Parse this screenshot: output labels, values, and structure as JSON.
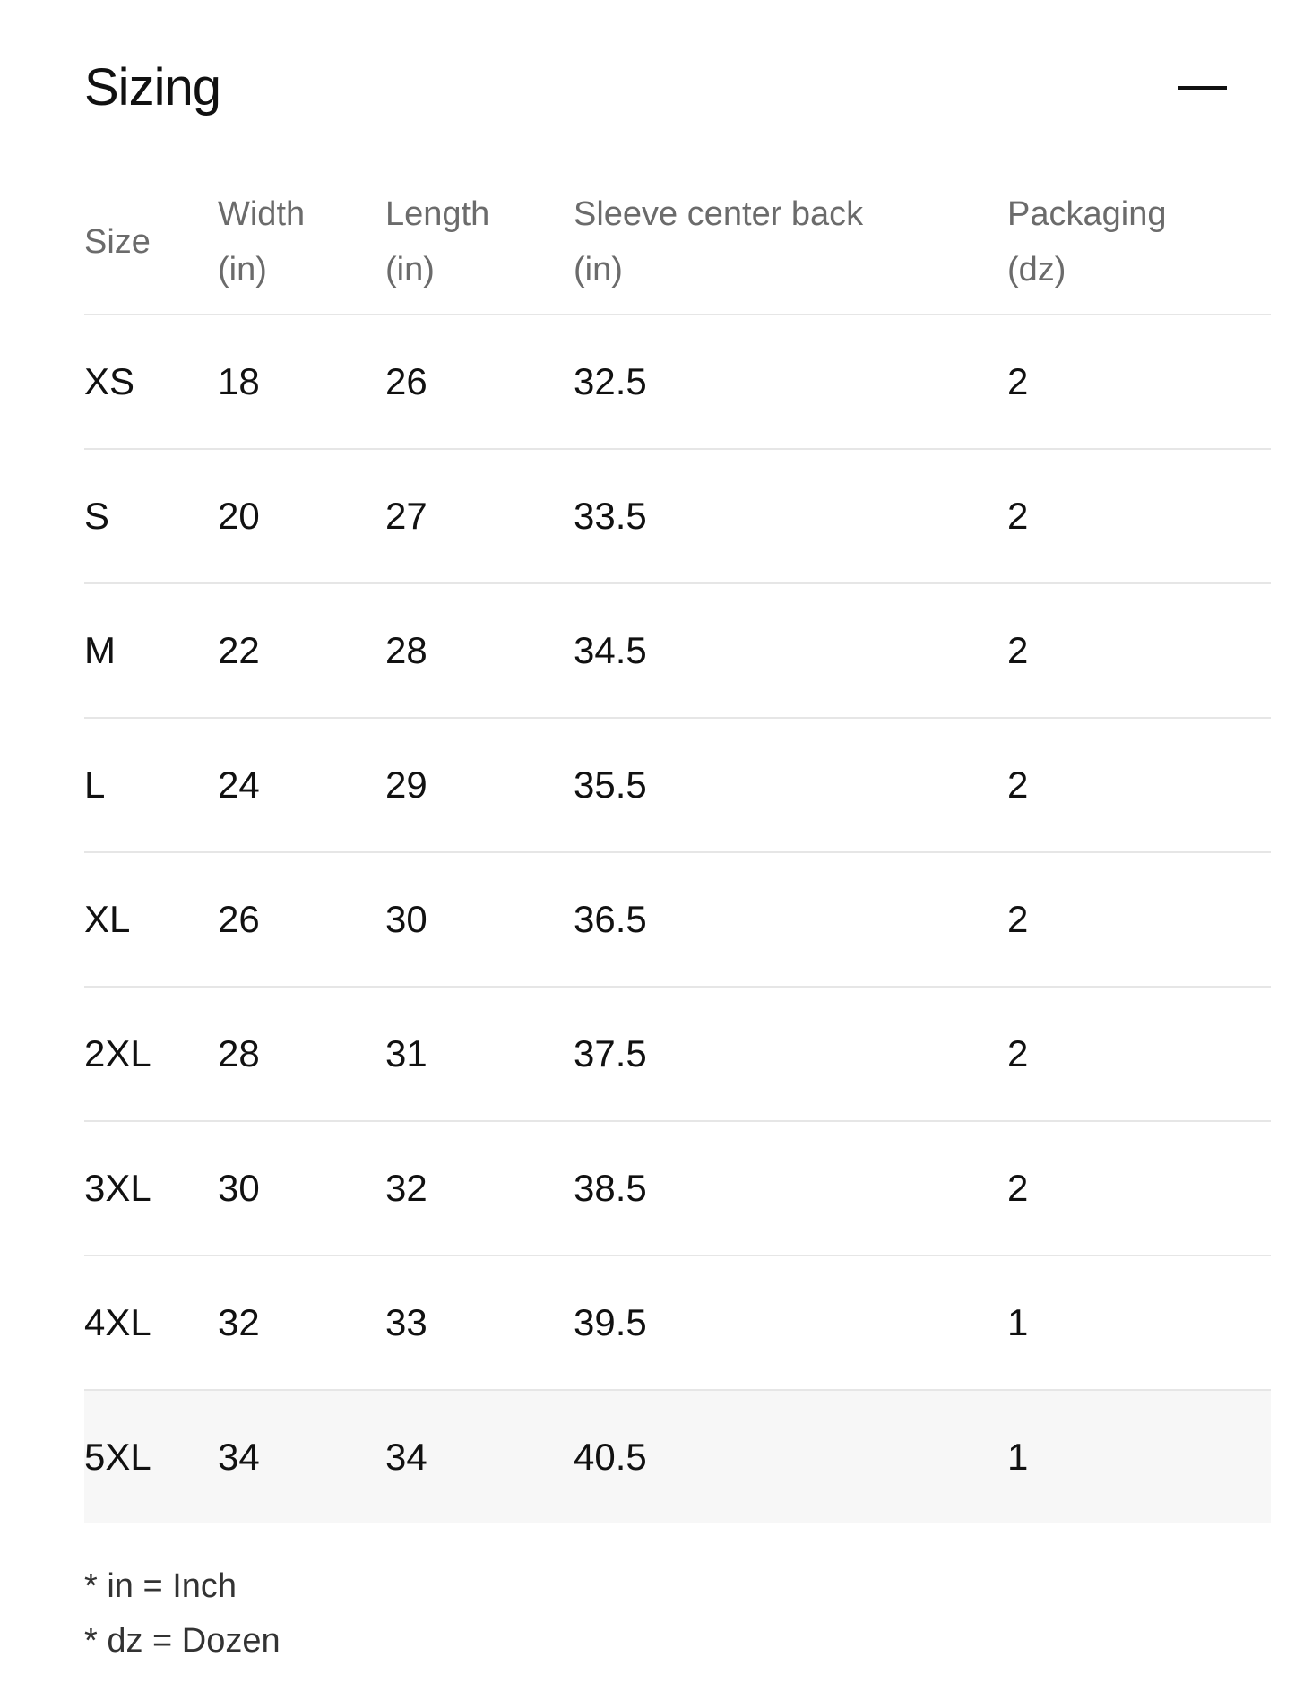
{
  "title": "Sizing",
  "collapse_icon": "minus-icon",
  "headers": [
    {
      "line1": "Size",
      "line2": ""
    },
    {
      "line1": "Width",
      "line2": "(in)"
    },
    {
      "line1": "Length",
      "line2": "(in)"
    },
    {
      "line1": "Sleeve center back",
      "line2": "(in)"
    },
    {
      "line1": "Packaging",
      "line2": "(dz)"
    }
  ],
  "rows": [
    [
      "XS",
      "18",
      "26",
      "32.5",
      "2"
    ],
    [
      "S",
      "20",
      "27",
      "33.5",
      "2"
    ],
    [
      "M",
      "22",
      "28",
      "34.5",
      "2"
    ],
    [
      "L",
      "24",
      "29",
      "35.5",
      "2"
    ],
    [
      "XL",
      "26",
      "30",
      "36.5",
      "2"
    ],
    [
      "2XL",
      "28",
      "31",
      "37.5",
      "2"
    ],
    [
      "3XL",
      "30",
      "32",
      "38.5",
      "2"
    ],
    [
      "4XL",
      "32",
      "33",
      "39.5",
      "1"
    ],
    [
      "5XL",
      "34",
      "34",
      "40.5",
      "1"
    ]
  ],
  "notes": [
    "* in = Inch",
    "* dz = Dozen"
  ]
}
